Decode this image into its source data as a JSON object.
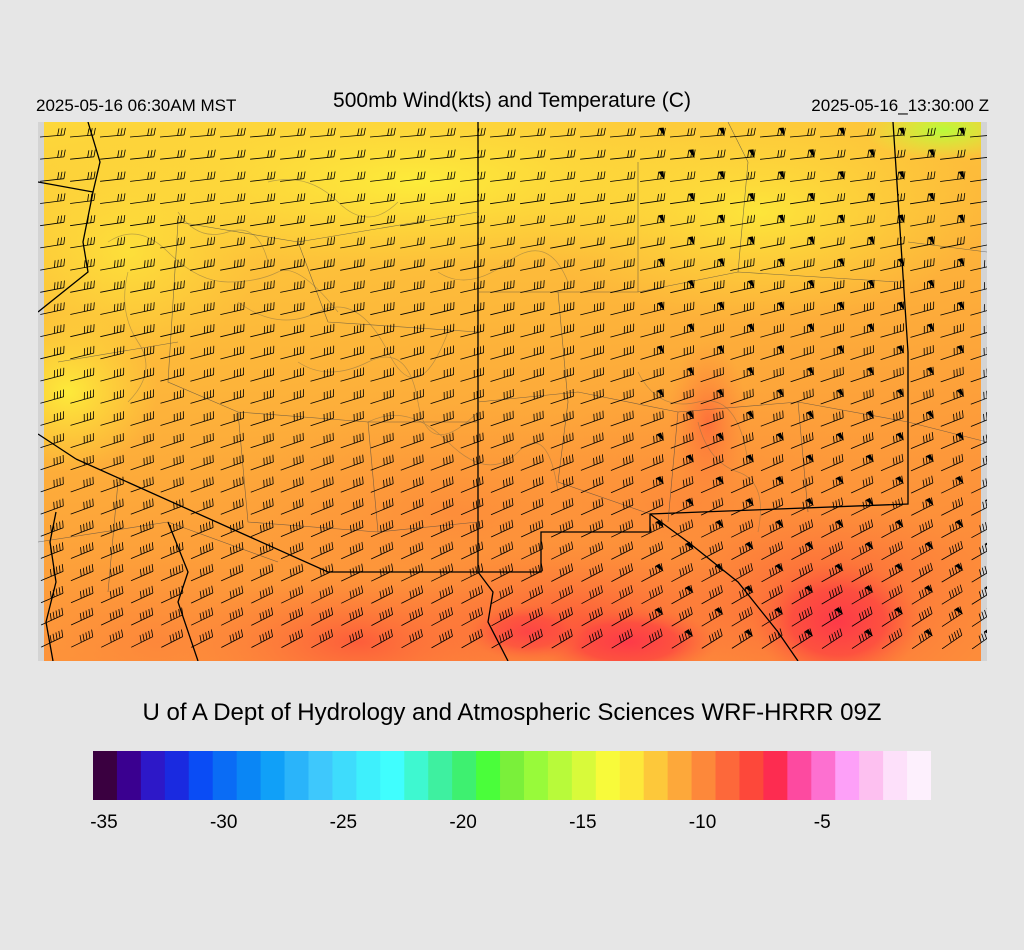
{
  "header": {
    "left_time": "2025-05-16 06:30AM MST",
    "title": "500mb Wind(kts) and Temperature (C)",
    "right_time": "2025-05-16_13:30:00 Z"
  },
  "footer": {
    "credit": "U of A Dept of Hydrology and Atmospheric Sciences WRF-HRRR 09Z"
  },
  "colorbar": {
    "colors": [
      "#3a0040",
      "#3a0090",
      "#2d18c8",
      "#1a2ae0",
      "#0a4cf5",
      "#0a6cf5",
      "#0a86f5",
      "#10a0f8",
      "#2ab4fa",
      "#3ec8fc",
      "#3edcfc",
      "#3ef0fc",
      "#40fefe",
      "#3ef8d0",
      "#3ef0a0",
      "#3ef070",
      "#4afe3a",
      "#7af03a",
      "#98fa3a",
      "#b8fa3a",
      "#d8fa3a",
      "#f8fa3a",
      "#fde83a",
      "#fdc83a",
      "#fda83a",
      "#fd883a",
      "#fd683a",
      "#fd483a",
      "#fd2c50",
      "#fd4aa0",
      "#fd70d0",
      "#fda0f8",
      "#fdc0f0",
      "#fde0fa",
      "#fdf0fd"
    ],
    "tick_labels": [
      "-35",
      "-30",
      "-25",
      "-20",
      "-15",
      "-10",
      "-5"
    ],
    "tick_index": [
      0,
      5,
      10,
      15,
      20,
      25,
      30
    ]
  }
}
